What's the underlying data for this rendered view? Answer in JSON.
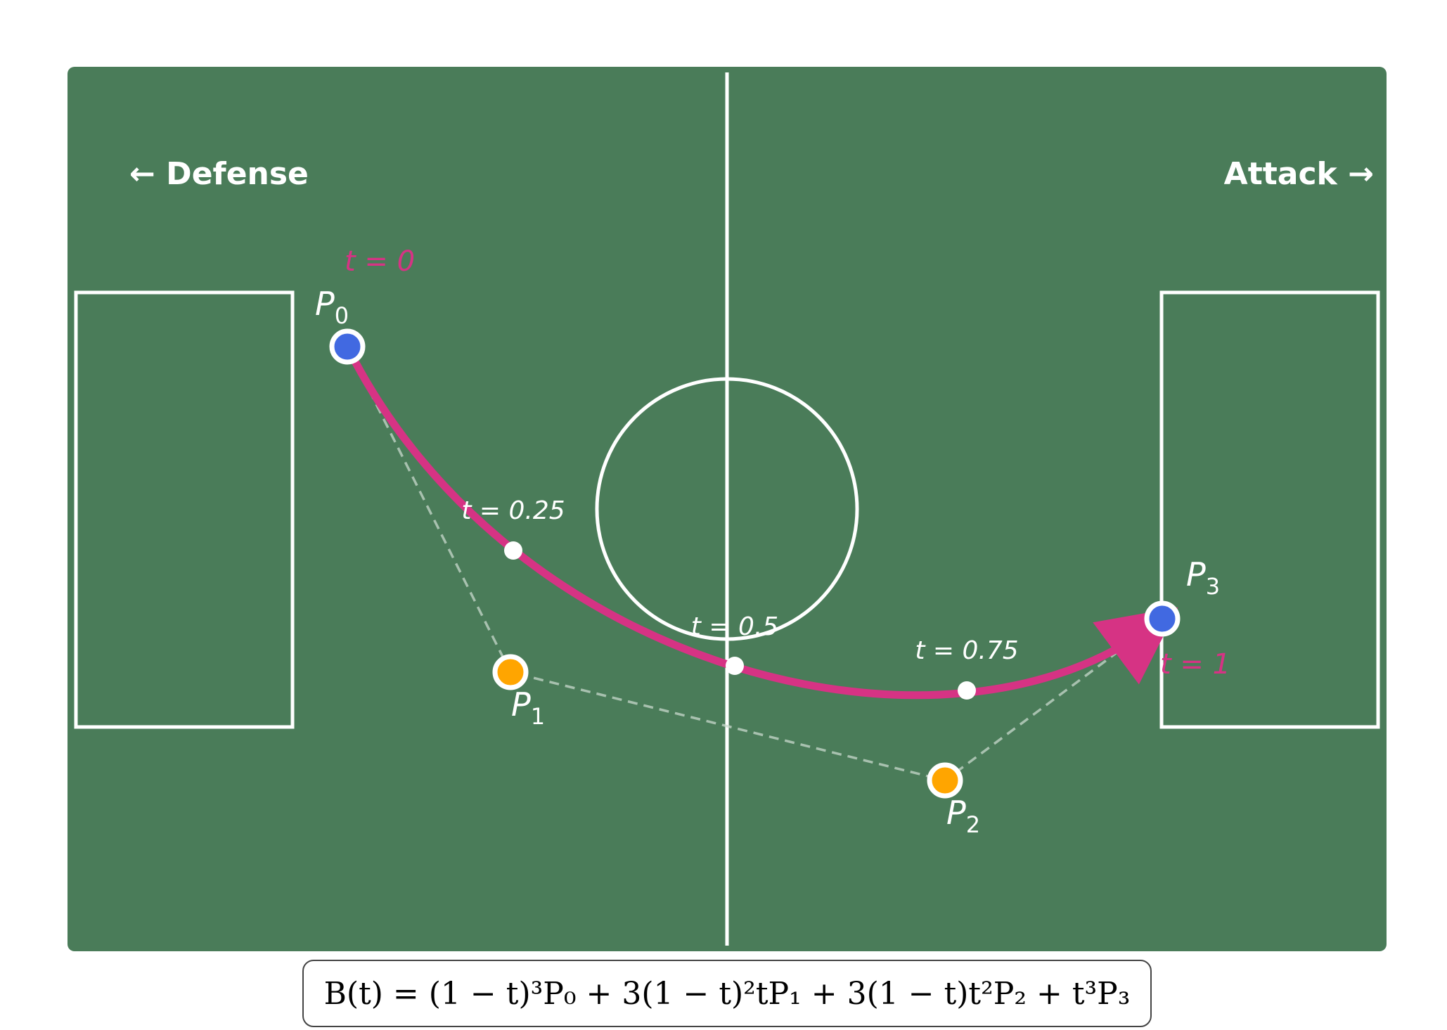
{
  "pitch": {
    "color": "#4a7c59",
    "line_color": "#ffffff",
    "defense_label": "← Defense",
    "attack_label": "Attack →"
  },
  "control_points": [
    {
      "name": "P",
      "sub": "0",
      "role": "endpoint",
      "color": "#4169e1"
    },
    {
      "name": "P",
      "sub": "1",
      "role": "control",
      "color": "#ffa500"
    },
    {
      "name": "P",
      "sub": "2",
      "role": "control",
      "color": "#ffa500"
    },
    {
      "name": "P",
      "sub": "3",
      "role": "endpoint",
      "color": "#4169e1"
    }
  ],
  "curve": {
    "color": "#d63384",
    "start_label": "t = 0",
    "end_label": "t = 1",
    "samples": [
      {
        "label": "t = 0.25"
      },
      {
        "label": "t = 0.5"
      },
      {
        "label": "t = 0.75"
      }
    ]
  },
  "formula": {
    "text": "B(t) = (1 − t)³P₀ + 3(1 − t)²tP₁ + 3(1 − t)t²P₂ + t³P₃"
  }
}
